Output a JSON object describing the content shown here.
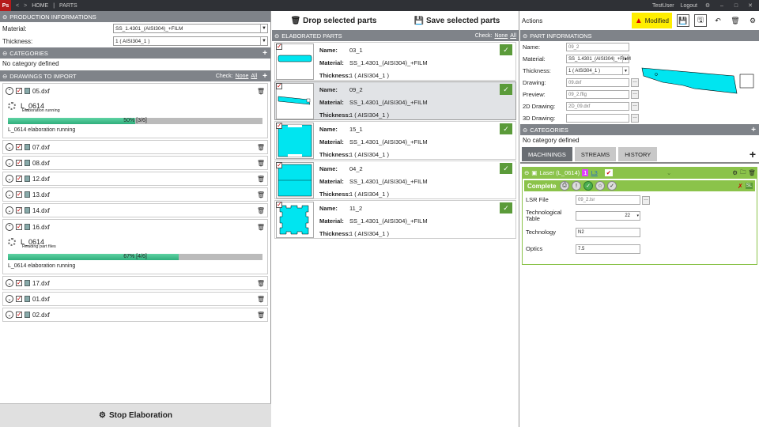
{
  "topbar": {
    "logo": "Ps",
    "nav_back": "<",
    "nav_fwd": ">",
    "home": "HOME",
    "sep": "|",
    "page": "PARTS",
    "user": "TestUser",
    "logout": "Logout"
  },
  "left": {
    "production_header": "PRODUCTION INFORMATIONS",
    "material_label": "Material:",
    "material_value": "SS_1.4301_(AISI304)_+FILM",
    "thickness_label": "Thickness:",
    "thickness_value": "1  ( AISI304_1 )",
    "categories_header": "CATEGORIES",
    "no_category": "No category defined",
    "drawings_header": "DRAWINGS TO IMPORT",
    "check_label": "Check:",
    "check_none": "None",
    "check_all": "All",
    "files": [
      {
        "name": "05.dxf",
        "job": {
          "title": "L_0614",
          "status": "Elaboration running",
          "progress_text": "50% [3/6]",
          "progress": 0.5,
          "message": "L_0614 elaboration running"
        }
      },
      {
        "name": "07.dxf"
      },
      {
        "name": "08.dxf"
      },
      {
        "name": "12.dxf"
      },
      {
        "name": "13.dxf"
      },
      {
        "name": "14.dxf"
      },
      {
        "name": "16.dxf",
        "job": {
          "title": "L_0614",
          "status": "Reading part files",
          "progress_text": "67% [4/6]",
          "progress": 0.67,
          "message": "L_0614 elaboration running"
        }
      },
      {
        "name": "17.dxf"
      },
      {
        "name": "01.dxf"
      },
      {
        "name": "02.dxf"
      }
    ],
    "stop_button": "Stop Elaboration"
  },
  "mid": {
    "drop_button": "Drop selected parts",
    "save_button": "Save selected parts",
    "header": "ELABORATED PARTS",
    "check_label": "Check:",
    "check_none": "None",
    "check_all": "All",
    "name_label": "Name:",
    "material_label": "Material:",
    "thickness_label": "Thickness:",
    "parts": [
      {
        "name": "03_1",
        "material": "SS_1.4301_(AISI304)_+FILM",
        "thickness": "1  ( AISI304_1 )"
      },
      {
        "name": "09_2",
        "material": "SS_1.4301_(AISI304)_+FILM",
        "thickness": "1  ( AISI304_1 )"
      },
      {
        "name": "15_1",
        "material": "SS_1.4301_(AISI304)_+FILM",
        "thickness": "1  ( AISI304_1 )"
      },
      {
        "name": "04_2",
        "material": "SS_1.4301_(AISI304)_+FILM",
        "thickness": "1  ( AISI304_1 )"
      },
      {
        "name": "11_2",
        "material": "SS_1.4301_(AISI304)_+FILM",
        "thickness": "1  ( AISI304_1 )"
      }
    ]
  },
  "right": {
    "actions_label": "Actions",
    "modified": "Modified",
    "part_info_header": "PART INFORMATIONS",
    "fields": [
      {
        "label": "Name:",
        "value": "09_2"
      },
      {
        "label": "Material:",
        "value": "SS_1.4301_(AISI304)_+FILM"
      },
      {
        "label": "Thickness:",
        "value": "1  ( AISI304_1 )"
      },
      {
        "label": "Drawing:",
        "value": "09.dxf"
      },
      {
        "label": "Preview:",
        "value": "09_2.ffig"
      },
      {
        "label": "2D Drawing:",
        "value": "2D_09.dxf"
      },
      {
        "label": "3D Drawing:",
        "value": ""
      }
    ],
    "categories_header": "CATEGORIES",
    "no_category": "No category defined",
    "tabs": [
      "MACHININGS",
      "STREAMS",
      "HISTORY"
    ],
    "laser_title": "Laser (L_0614)",
    "laser_badge1": "1",
    "laser_badge2": "L3",
    "complete_label": "Complete",
    "lsr_label": "LSR File",
    "lsr_value": "09_2.lsr",
    "tech_table_label": "Technological Table",
    "tech_table_value": "22",
    "technology_label": "Technology",
    "technology_value": "N2",
    "optics_label": "Optics",
    "optics_value": "7.5"
  },
  "colors": {
    "part_fill": "#00e5f0",
    "header": "#7f8389",
    "accent": "#8bc34a",
    "modified": "#ffee00"
  }
}
